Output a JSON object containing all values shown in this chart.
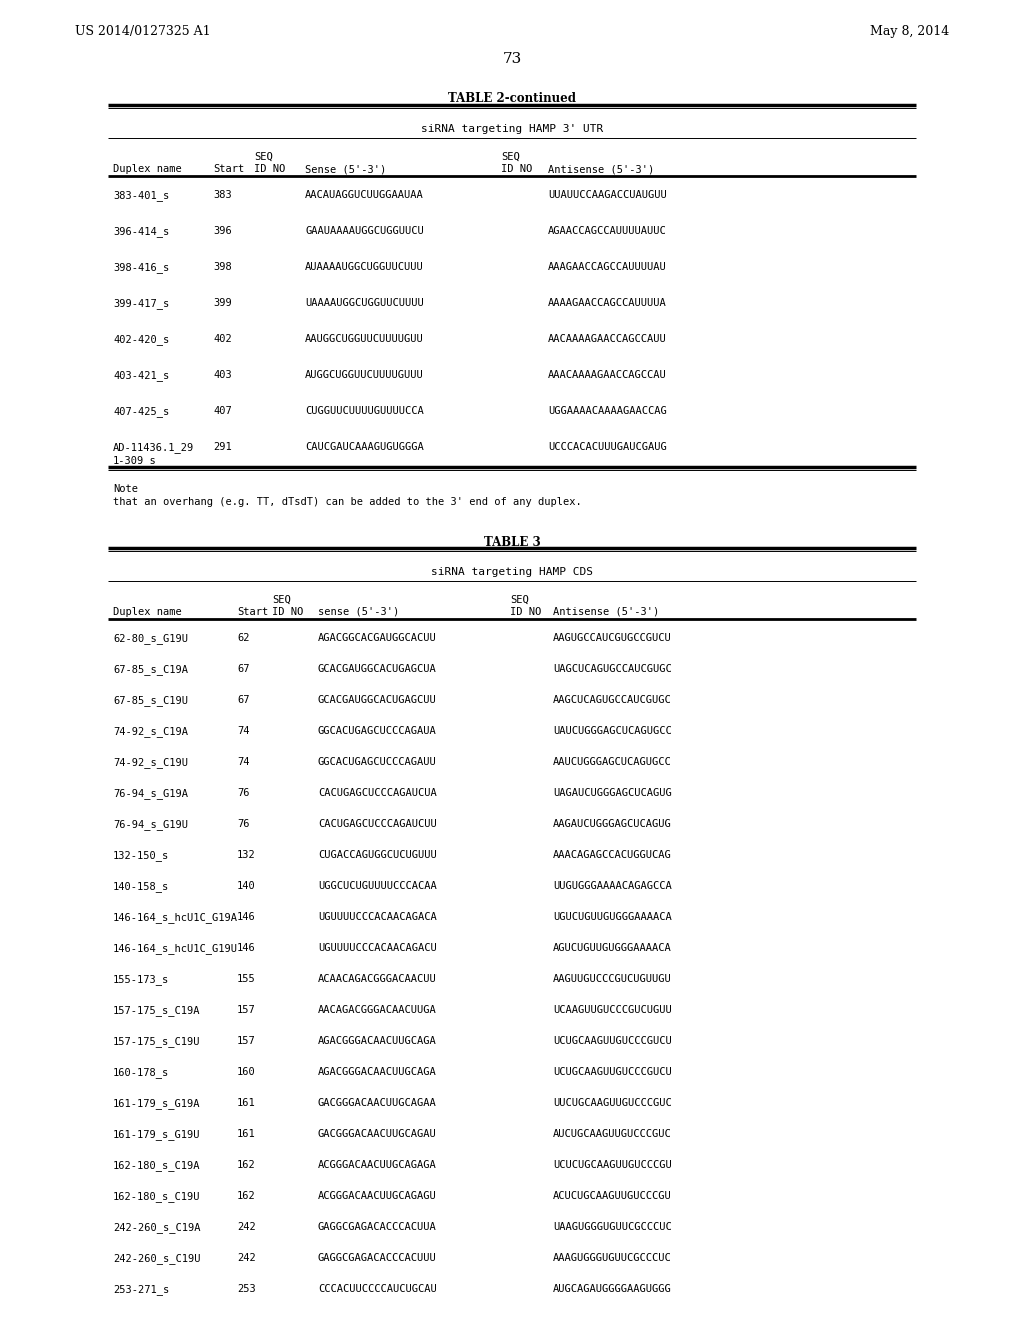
{
  "page_header_left": "US 2014/0127325 A1",
  "page_header_right": "May 8, 2014",
  "page_number": "73",
  "table2_title": "TABLE 2-continued",
  "table2_subtitle": "siRNA targeting HAMP 3' UTR",
  "table2_rows": [
    [
      "383-401_s",
      "383",
      "AACAUAGGUCUUGGAAUAA",
      "UUAUUCCAAGACCUAUGUU"
    ],
    [
      "396-414_s",
      "396",
      "GAAUAAAAUGGCUGGUUCU",
      "AGAACCAGCCAUUUUAUUC"
    ],
    [
      "398-416_s",
      "398",
      "AUAAAAUGGCUGGUUCUUU",
      "AAAGAACCAGCCAUUUUAU"
    ],
    [
      "399-417_s",
      "399",
      "UAAAAUGGCUGGUUCUUUU",
      "AAAAGAACCAGCCAUUUUA"
    ],
    [
      "402-420_s",
      "402",
      "AAUGGCUGGUUCUUUUGUU",
      "AACAAAAGAACCAGCCAUU"
    ],
    [
      "403-421_s",
      "403",
      "AUGGCUGGUUCUUUUGUUU",
      "AAACAAAAGAACCAGCCAU"
    ],
    [
      "407-425_s",
      "407",
      "CUGGUUCUUUUGUUUUCCA",
      "UGGAAAACAAAAGAACCAG"
    ],
    [
      "AD-11436.1_29\n1-309_s",
      "291",
      "CAUCGAUCAAAGUGUGGGA",
      "UCCCACACUUUGAUCGAUG"
    ]
  ],
  "table2_note_line1": "Note",
  "table2_note_line2": "that an overhang (e.g. TT, dTsdT) can be added to the 3' end of any duplex.",
  "table3_title": "TABLE 3",
  "table3_subtitle": "siRNA targeting HAMP CDS",
  "table3_rows": [
    [
      "62-80_s_G19U",
      "62",
      "AGACGGCACGAUGGCACUU",
      "AAGUGCCAUCGUGCCGUCU"
    ],
    [
      "67-85_s_C19A",
      "67",
      "GCACGAUGGCACUGAGCUA",
      "UAGCUCAGUGCCAUCGUGC"
    ],
    [
      "67-85_s_C19U",
      "67",
      "GCACGAUGGCACUGAGCUU",
      "AAGCUCAGUGCCAUCGUGC"
    ],
    [
      "74-92_s_C19A",
      "74",
      "GGCACUGAGCUCCCAGAUA",
      "UAUCUGGGAGCUCAGUGCC"
    ],
    [
      "74-92_s_C19U",
      "74",
      "GGCACUGAGCUCCCAGAUU",
      "AAUCUGGGAGCUCAGUGCC"
    ],
    [
      "76-94_s_G19A",
      "76",
      "CACUGAGCUCCCAGAUCUA",
      "UAGAUCUGGGAGCUCAGUG"
    ],
    [
      "76-94_s_G19U",
      "76",
      "CACUGAGCUCCCAGAUCUU",
      "AAGAUCUGGGAGCUCAGUG"
    ],
    [
      "132-150_s",
      "132",
      "CUGACCAGUGGCUCUGUUU",
      "AAACAGAGCCACUGGUCAG"
    ],
    [
      "140-158_s",
      "140",
      "UGGCUCUGUUUUCCCACAA",
      "UUGUGGGAAAACAGAGCCA"
    ],
    [
      "146-164_s_hcU1C_G19A",
      "146",
      "UGUUUUCCCACAACAGACA",
      "UGUCUGUUGUGGGAAAACA"
    ],
    [
      "146-164_s_hcU1C_G19U",
      "146",
      "UGUUUUCCCACAACAGACU",
      "AGUCUGUUGUGGGAAAACA"
    ],
    [
      "155-173_s",
      "155",
      "ACAACAGACGGGACAACUU",
      "AAGUUGUCCCGUCUGUUGU"
    ],
    [
      "157-175_s_C19A",
      "157",
      "AACAGACGGGACAACUUGA",
      "UCAAGUUGUCCCGUCUGUU"
    ],
    [
      "157-175_s_C19U",
      "157",
      "AGACGGGACAACUUGCAGA",
      "UCUGCAAGUUGUCCCGUCU"
    ],
    [
      "160-178_s",
      "160",
      "AGACGGGACAACUUGCAGA",
      "UCUGCAAGUUGUCCCGUCU"
    ],
    [
      "161-179_s_G19A",
      "161",
      "GACGGGACAACUUGCAGAA",
      "UUCUGCAAGUUGUCCCGUC"
    ],
    [
      "161-179_s_G19U",
      "161",
      "GACGGGACAACUUGCAGAU",
      "AUCUGCAAGUUGUCCCGUC"
    ],
    [
      "162-180_s_C19A",
      "162",
      "ACGGGACAACUUGCAGAGA",
      "UCUCUGCAAGUUGUCCCGU"
    ],
    [
      "162-180_s_C19U",
      "162",
      "ACGGGACAACUUGCAGAGU",
      "ACUCUGCAAGUUGUCCCGU"
    ],
    [
      "242-260_s_C19A",
      "242",
      "GAGGCGAGACACCCACUUA",
      "UAAGUGGGUGUUCGCCCUC"
    ],
    [
      "242-260_s_C19U",
      "242",
      "GAGGCGAGACACCCACUUU",
      "AAAGUGGGUGUUCGCCCUC"
    ],
    [
      "253-271_s",
      "253",
      "CCCACUUCCCCAUCUGCAU",
      "AUGCAGAUGGGGAAGUGGG"
    ]
  ],
  "bg_color": "#ffffff",
  "text_color": "#000000"
}
